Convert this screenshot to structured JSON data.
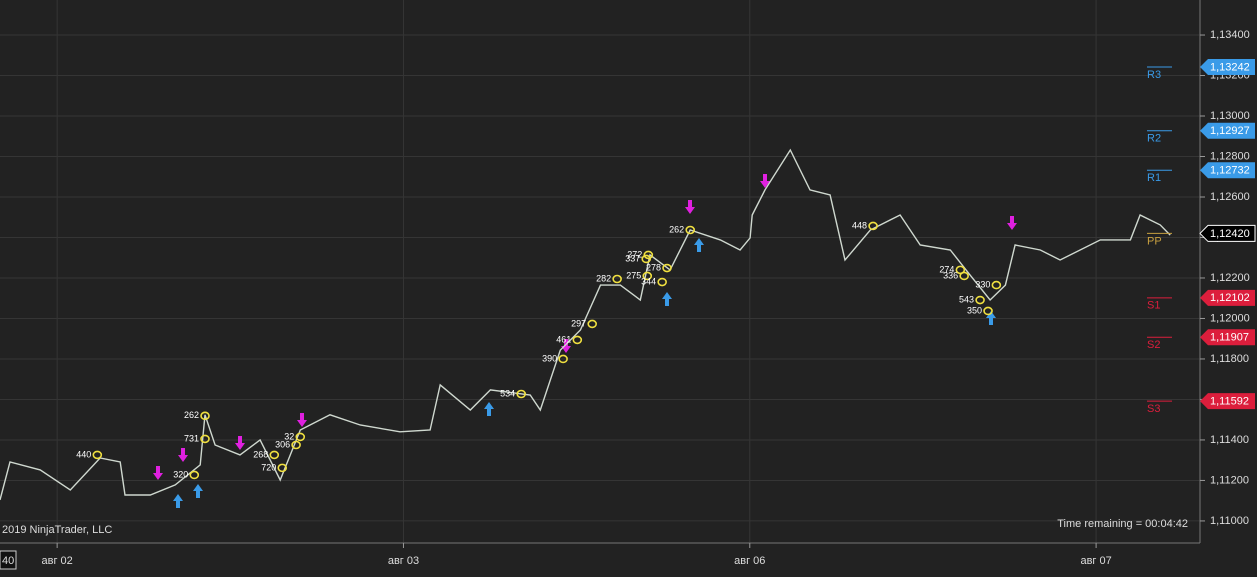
{
  "chart_data": {
    "type": "line",
    "x": [
      -0.165,
      -0.136,
      -0.049,
      0.038,
      0.124,
      0.182,
      0.196,
      0.269,
      0.341,
      0.413,
      0.427,
      0.456,
      0.528,
      0.586,
      0.644,
      0.702,
      0.788,
      0.875,
      0.99,
      1.077,
      1.106,
      1.193,
      1.251,
      1.366,
      1.395,
      1.453,
      1.511,
      1.569,
      1.626,
      1.684,
      1.712,
      1.77,
      1.828,
      1.915,
      1.972,
      2.001,
      2.007,
      2.044,
      2.117,
      2.174,
      2.232,
      2.275,
      2.348,
      2.434,
      2.492,
      2.579,
      2.636,
      2.694,
      2.738,
      2.766,
      2.839,
      2.896,
      3.012,
      3.099,
      3.127,
      3.185,
      3.214
    ],
    "values": [
      1.11104,
      1.11291,
      1.11252,
      1.11153,
      1.11311,
      1.11291,
      1.11128,
      1.11128,
      1.11178,
      1.11277,
      1.11524,
      1.11375,
      1.11326,
      1.114,
      1.11202,
      1.11449,
      1.11524,
      1.11474,
      1.1144,
      1.11449,
      1.11672,
      1.11548,
      1.11647,
      1.11622,
      1.11548,
      1.11844,
      1.11943,
      1.12165,
      1.12165,
      1.12091,
      1.12314,
      1.1224,
      1.12437,
      1.12388,
      1.12338,
      1.12398,
      1.12511,
      1.12635,
      1.12832,
      1.12635,
      1.1261,
      1.12289,
      1.12437,
      1.12511,
      1.12363,
      1.12338,
      1.12215,
      1.12091,
      1.12165,
      1.12363,
      1.12338,
      1.12289,
      1.12388,
      1.12388,
      1.12511,
      1.12462,
      1.12412
    ],
    "color": "#cfd8cf",
    "xlim": [
      -0.165,
      3.3
    ],
    "xticks": [
      {
        "value": 0,
        "label": "авг 02"
      },
      {
        "value": 1,
        "label": "авг 03"
      },
      {
        "value": 2,
        "label": "авг 06"
      },
      {
        "value": 3,
        "label": "авг 07"
      }
    ],
    "ylim": [
      1.10891,
      1.13573
    ],
    "yticks": [
      {
        "value": 1.11,
        "label": "1,11000"
      },
      {
        "value": 1.112,
        "label": "1,11200"
      },
      {
        "value": 1.114,
        "label": "1,11400"
      },
      {
        "value": 1.116,
        "label": "1,11600"
      },
      {
        "value": 1.118,
        "label": "1,11800"
      },
      {
        "value": 1.12,
        "label": "1,12000"
      },
      {
        "value": 1.122,
        "label": "1,12200"
      },
      {
        "value": 1.124,
        "label": "1,12400"
      },
      {
        "value": 1.126,
        "label": "1,12600"
      },
      {
        "value": 1.128,
        "label": "1,12800"
      },
      {
        "value": 1.13,
        "label": "1,13000"
      },
      {
        "value": 1.132,
        "label": "1,13200"
      },
      {
        "value": 1.134,
        "label": "1,13400"
      }
    ],
    "grid": true,
    "levels": [
      {
        "name": "R3",
        "value": 1.13242,
        "value_label": "1,13242",
        "color": "#3a9be8",
        "tag_color": "#3a9be8"
      },
      {
        "name": "R2",
        "value": 1.12927,
        "value_label": "1,12927",
        "color": "#3a9be8",
        "tag_color": "#3a9be8"
      },
      {
        "name": "R1",
        "value": 1.12732,
        "value_label": "1,12732",
        "color": "#3a9be8",
        "tag_color": "#3a9be8"
      },
      {
        "name": "PP",
        "value": 1.1242,
        "value_label": "1,12420",
        "color": "#c8a040",
        "tag_color": "#000000"
      },
      {
        "name": "S1",
        "value": 1.12102,
        "value_label": "1,12102",
        "color": "#dc1e3c",
        "tag_color": "#dc1e3c"
      },
      {
        "name": "S2",
        "value": 1.11907,
        "value_label": "1,11907",
        "color": "#dc1e3c",
        "tag_color": "#dc1e3c"
      },
      {
        "name": "S3",
        "value": 1.11592,
        "value_label": "1,11592",
        "color": "#dc1e3c",
        "tag_color": "#dc1e3c"
      }
    ],
    "annotations": [
      {
        "label": "440",
        "x": 0.116,
        "y": 1.11326
      },
      {
        "label": "262",
        "x": 0.427,
        "y": 1.11519
      },
      {
        "label": "731",
        "x": 0.427,
        "y": 1.11405
      },
      {
        "label": "320",
        "x": 0.396,
        "y": 1.11227
      },
      {
        "label": "268",
        "x": 0.627,
        "y": 1.11326
      },
      {
        "label": "720",
        "x": 0.65,
        "y": 1.11262
      },
      {
        "label": "306",
        "x": 0.69,
        "y": 1.11375
      },
      {
        "label": "32",
        "x": 0.702,
        "y": 1.11415
      },
      {
        "label": "390",
        "x": 1.461,
        "y": 1.118
      },
      {
        "label": "461",
        "x": 1.502,
        "y": 1.11894
      },
      {
        "label": "297",
        "x": 1.545,
        "y": 1.11973
      },
      {
        "label": "282",
        "x": 1.617,
        "y": 1.12195
      },
      {
        "label": "275",
        "x": 1.704,
        "y": 1.1221
      },
      {
        "label": "272",
        "x": 1.707,
        "y": 1.12314
      },
      {
        "label": "337",
        "x": 1.701,
        "y": 1.12294
      },
      {
        "label": "278",
        "x": 1.761,
        "y": 1.12249
      },
      {
        "label": "344",
        "x": 1.747,
        "y": 1.1218
      },
      {
        "label": "262",
        "x": 1.828,
        "y": 1.12437
      },
      {
        "label": "534",
        "x": 1.34,
        "y": 1.11627
      },
      {
        "label": "448",
        "x": 2.356,
        "y": 1.12457
      },
      {
        "label": "274",
        "x": 2.608,
        "y": 1.1224
      },
      {
        "label": "336",
        "x": 2.619,
        "y": 1.1221
      },
      {
        "label": "330",
        "x": 2.712,
        "y": 1.12165
      },
      {
        "label": "543",
        "x": 2.665,
        "y": 1.12091
      },
      {
        "label": "350",
        "x": 2.688,
        "y": 1.12037
      }
    ],
    "copyright": "2019 NinjaTrader, LLC",
    "status": "Time remaining = 00:04:42",
    "corner_label": "40"
  }
}
